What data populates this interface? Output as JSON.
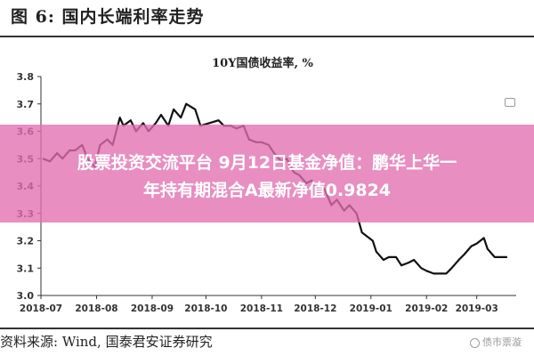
{
  "figure_label": "图 6: 国内长端利率走势",
  "source_text": "资料来源: Wind, 国泰君安证券研究",
  "watermark_text": "债市票漩",
  "overlay_headline_line1": "股票投资交流平台 9月12日基金净值：鹏华上华一",
  "overlay_headline_line2": "年持有期混合A最新净值0.9824",
  "colors": {
    "line": "#111111",
    "axis": "#333333",
    "overlay": "#e26eaf"
  },
  "chart_data": {
    "type": "line",
    "title": "10Y国债收益率, %",
    "xlabel": "",
    "ylabel": "",
    "ylim": [
      3.0,
      3.8
    ],
    "yticks": [
      "3.8",
      "3.7",
      "3.6",
      "3.5",
      "3.4",
      "3.3",
      "3.2",
      "3.1",
      "3.0"
    ],
    "xticks": [
      "2018-07",
      "2018-08",
      "2018-09",
      "2018-10",
      "2018-11",
      "2018-12",
      "2019-01",
      "2019-02",
      "2019-03"
    ],
    "grid": false,
    "legend": "none",
    "series": [
      {
        "values": [
          [
            "2018-07-02",
            3.5
          ],
          [
            "2018-07-06",
            3.49
          ],
          [
            "2018-07-10",
            3.52
          ],
          [
            "2018-07-13",
            3.5
          ],
          [
            "2018-07-17",
            3.53
          ],
          [
            "2018-07-20",
            3.53
          ],
          [
            "2018-07-24",
            3.55
          ],
          [
            "2018-07-27",
            3.5
          ],
          [
            "2018-07-31",
            3.47
          ],
          [
            "2018-08-03",
            3.55
          ],
          [
            "2018-08-07",
            3.57
          ],
          [
            "2018-08-10",
            3.55
          ],
          [
            "2018-08-14",
            3.65
          ],
          [
            "2018-08-16",
            3.62
          ],
          [
            "2018-08-20",
            3.64
          ],
          [
            "2018-08-23",
            3.6
          ],
          [
            "2018-08-27",
            3.63
          ],
          [
            "2018-08-30",
            3.6
          ],
          [
            "2018-09-03",
            3.63
          ],
          [
            "2018-09-06",
            3.66
          ],
          [
            "2018-09-10",
            3.62
          ],
          [
            "2018-09-13",
            3.68
          ],
          [
            "2018-09-17",
            3.65
          ],
          [
            "2018-09-20",
            3.7
          ],
          [
            "2018-09-25",
            3.68
          ],
          [
            "2018-09-28",
            3.62
          ],
          [
            "2018-10-08",
            3.64
          ],
          [
            "2018-10-11",
            3.62
          ],
          [
            "2018-10-15",
            3.62
          ],
          [
            "2018-10-18",
            3.61
          ],
          [
            "2018-10-22",
            3.62
          ],
          [
            "2018-10-25",
            3.57
          ],
          [
            "2018-10-29",
            3.56
          ],
          [
            "2018-11-01",
            3.56
          ],
          [
            "2018-11-05",
            3.55
          ],
          [
            "2018-11-08",
            3.52
          ],
          [
            "2018-11-12",
            3.49
          ],
          [
            "2018-11-15",
            3.5
          ],
          [
            "2018-11-19",
            3.45
          ],
          [
            "2018-11-22",
            3.44
          ],
          [
            "2018-11-26",
            3.41
          ],
          [
            "2018-11-29",
            3.42
          ],
          [
            "2018-12-03",
            3.38
          ],
          [
            "2018-12-06",
            3.39
          ],
          [
            "2018-12-10",
            3.33
          ],
          [
            "2018-12-13",
            3.35
          ],
          [
            "2018-12-17",
            3.31
          ],
          [
            "2018-12-20",
            3.33
          ],
          [
            "2018-12-24",
            3.3
          ],
          [
            "2018-12-27",
            3.23
          ],
          [
            "2019-01-02",
            3.2
          ],
          [
            "2019-01-04",
            3.16
          ],
          [
            "2019-01-08",
            3.13
          ],
          [
            "2019-01-11",
            3.14
          ],
          [
            "2019-01-15",
            3.14
          ],
          [
            "2019-01-18",
            3.11
          ],
          [
            "2019-01-22",
            3.12
          ],
          [
            "2019-01-25",
            3.13
          ],
          [
            "2019-01-29",
            3.1
          ],
          [
            "2019-02-01",
            3.09
          ],
          [
            "2019-02-05",
            3.08
          ],
          [
            "2019-02-08",
            3.08
          ],
          [
            "2019-02-12",
            3.08
          ],
          [
            "2019-02-15",
            3.1
          ],
          [
            "2019-02-19",
            3.13
          ],
          [
            "2019-02-22",
            3.15
          ],
          [
            "2019-02-26",
            3.18
          ],
          [
            "2019-03-01",
            3.19
          ],
          [
            "2019-03-05",
            3.21
          ],
          [
            "2019-03-07",
            3.17
          ],
          [
            "2019-03-11",
            3.14
          ],
          [
            "2019-03-14",
            3.14
          ],
          [
            "2019-03-18",
            3.14
          ]
        ]
      }
    ]
  }
}
